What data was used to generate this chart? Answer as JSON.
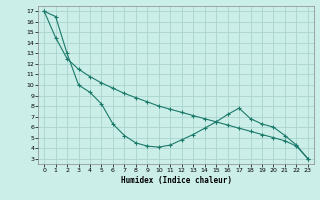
{
  "xlabel": "Humidex (Indice chaleur)",
  "background_color": "#cceee8",
  "grid_color": "#aad4ce",
  "line_color": "#1a7a6a",
  "xlim": [
    -0.5,
    23.5
  ],
  "ylim": [
    2.5,
    17.5
  ],
  "yticks": [
    3,
    4,
    5,
    6,
    7,
    8,
    9,
    10,
    11,
    12,
    13,
    14,
    15,
    16,
    17
  ],
  "xticks": [
    0,
    1,
    2,
    3,
    4,
    5,
    6,
    7,
    8,
    9,
    10,
    11,
    12,
    13,
    14,
    15,
    16,
    17,
    18,
    19,
    20,
    21,
    22,
    23
  ],
  "series1_x": [
    0,
    1,
    2,
    3,
    4,
    5,
    6,
    7,
    8,
    9,
    10,
    11,
    12,
    13,
    14,
    15,
    16,
    17,
    18,
    19,
    20,
    21,
    22,
    23
  ],
  "series1_y": [
    17.0,
    16.5,
    13.0,
    10.0,
    9.3,
    8.2,
    6.3,
    5.2,
    4.5,
    4.2,
    4.1,
    4.3,
    4.8,
    5.3,
    5.9,
    6.5,
    7.2,
    7.8,
    6.8,
    6.3,
    6.0,
    5.2,
    4.3,
    3.0
  ],
  "series2_x": [
    0,
    1,
    2,
    3,
    4,
    5,
    6,
    7,
    8,
    9,
    10,
    11,
    12,
    13,
    14,
    15,
    16,
    17,
    18,
    19,
    20,
    21,
    22,
    23
  ],
  "series2_y": [
    17.0,
    14.5,
    12.5,
    11.5,
    10.8,
    10.2,
    9.7,
    9.2,
    8.8,
    8.4,
    8.0,
    7.7,
    7.4,
    7.1,
    6.8,
    6.5,
    6.2,
    5.9,
    5.6,
    5.3,
    5.0,
    4.7,
    4.2,
    3.0
  ]
}
